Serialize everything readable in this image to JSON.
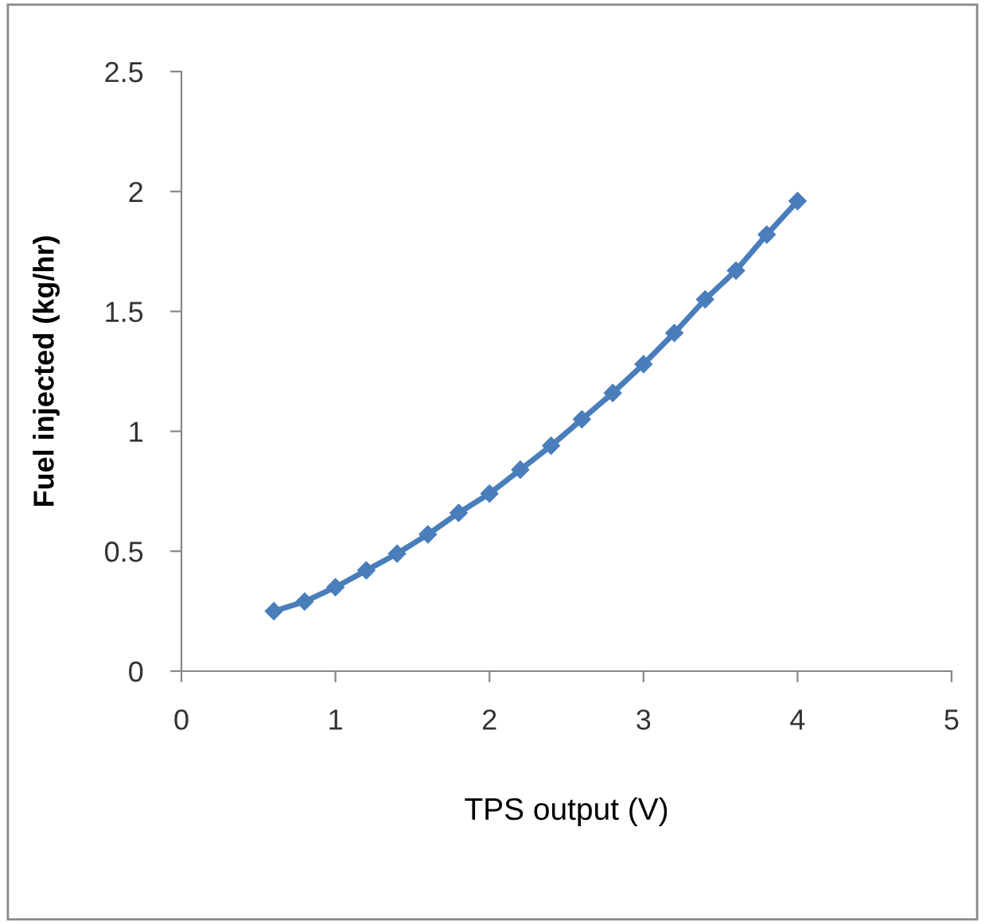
{
  "chart_data": {
    "type": "line",
    "xlabel": "TPS output (V)",
    "ylabel": "Fuel injected (kg/hr)",
    "x": [
      0.6,
      0.8,
      1.0,
      1.2,
      1.4,
      1.6,
      1.8,
      2.0,
      2.2,
      2.4,
      2.6,
      2.8,
      3.0,
      3.2,
      3.4,
      3.6,
      3.8,
      4.0
    ],
    "series": [
      {
        "color": "#4a7ebb",
        "values": [
          0.25,
          0.29,
          0.35,
          0.42,
          0.49,
          0.57,
          0.66,
          0.74,
          0.84,
          0.94,
          1.05,
          1.16,
          1.28,
          1.41,
          1.55,
          1.67,
          1.82,
          1.96
        ]
      }
    ],
    "xlim": [
      0,
      5
    ],
    "xticks": [
      0,
      1,
      2,
      3,
      4,
      5
    ],
    "ylim": [
      0,
      2.5
    ],
    "yticks": [
      0,
      {
        "value": 0.5,
        "label": "0.5"
      },
      1,
      {
        "value": 1.5,
        "label": "1.5"
      },
      2,
      {
        "value": 2.5,
        "label": "2.5"
      }
    ],
    "grid": false,
    "marker": "diamond",
    "line_style": "solid"
  }
}
